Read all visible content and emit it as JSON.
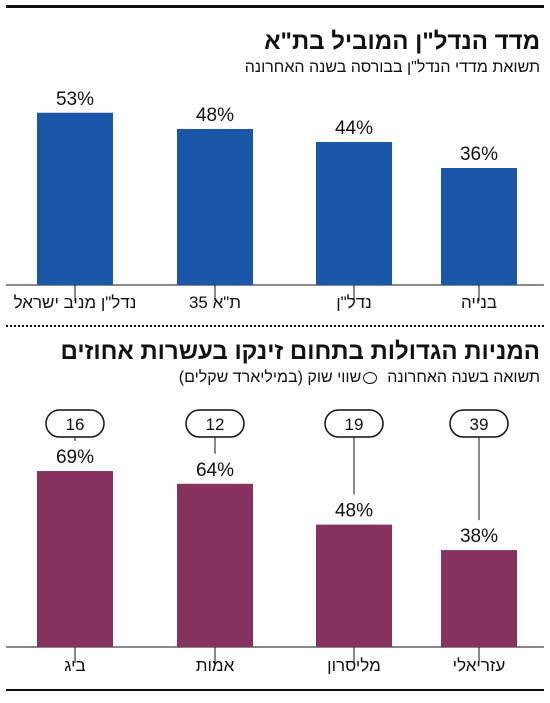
{
  "charts": {
    "top": {
      "title": "מדד הנדל\"ן המוביל בת\"א",
      "subtitle": "תשואת מדדי הנדל\"ן בבורסה בשנה האחרונה"
    },
    "bottom": {
      "title": "המניות הגדולות בתחום זינקו בעשרות אחוזים",
      "subtitle_return": "תשואה בשנה האחרונה",
      "subtitle_marketcap": "שווי שוק (במיליארד שקלים)"
    }
  },
  "colors": {
    "top_bars": "#1a57a8",
    "bottom_bars": "#85325f",
    "ink": "#111111"
  },
  "icons": {
    "legend": "ring-icon"
  },
  "chart_data": [
    {
      "type": "bar",
      "title": "מדד הנדל\"ן המוביל בת\"א",
      "subtitle": "תשואת מדדי הנדל\"ן בבורסה בשנה האחרונה",
      "categories": [
        "נדל\"ן מניב ישראל",
        "ת\"א 35",
        "נדל\"ן",
        "בנייה"
      ],
      "values": [
        53,
        48,
        44,
        36
      ],
      "value_labels": [
        "53%",
        "48%",
        "44%",
        "36%"
      ],
      "unit": "%",
      "ylim": [
        0,
        60
      ],
      "grid": false
    },
    {
      "type": "bar",
      "title": "המניות הגדולות בתחום זינקו בעשרות אחוזים",
      "categories": [
        "ביג",
        "אמות",
        "מליסרון",
        "עזריאלי"
      ],
      "values": [
        69,
        64,
        48,
        38
      ],
      "value_labels": [
        "69%",
        "64%",
        "48%",
        "38%"
      ],
      "market_cap": [
        16,
        12,
        19,
        39
      ],
      "market_cap_labels": [
        "16",
        "12",
        "19",
        "39"
      ],
      "unit": "%",
      "ylim": [
        0,
        80
      ],
      "grid": false
    }
  ]
}
